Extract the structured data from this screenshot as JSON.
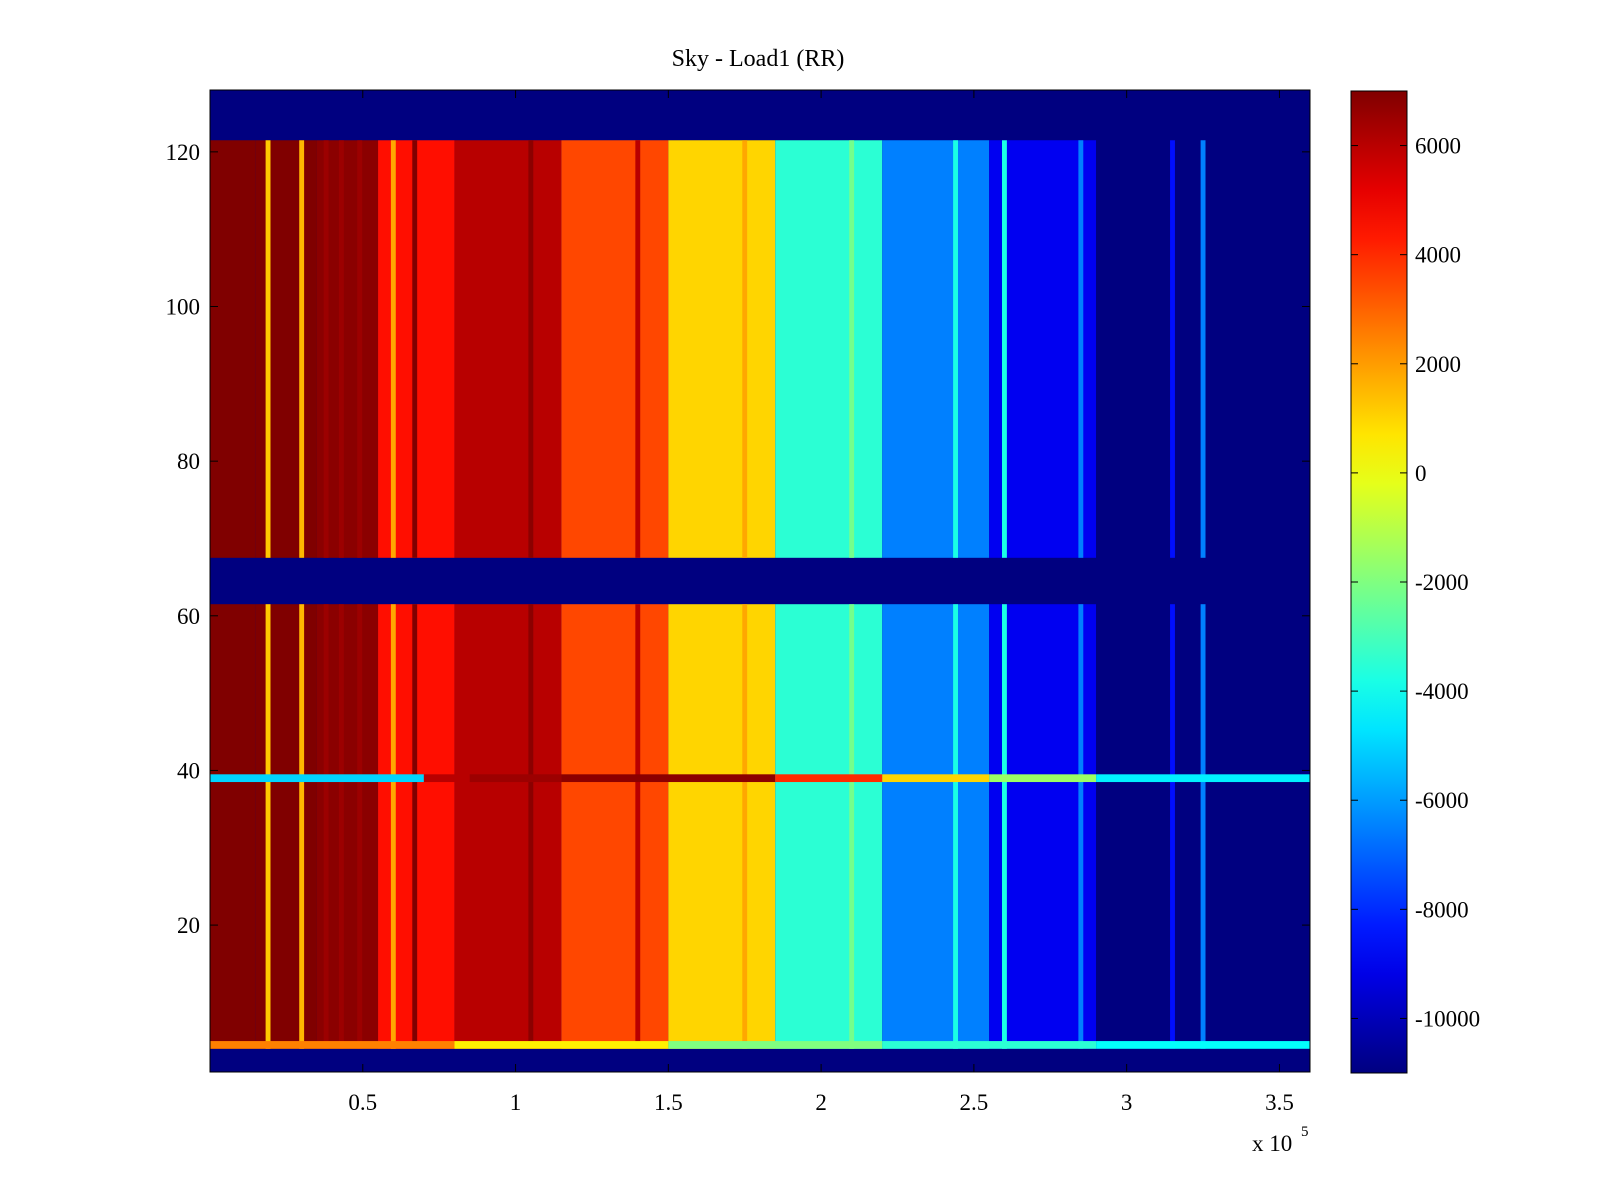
{
  "chart_data": {
    "type": "heatmap",
    "title": "Sky - Load1 (RR)",
    "xlabel": "",
    "ylabel": "",
    "x_multiplier_label": "x 10",
    "x_multiplier_exponent": "5",
    "xlim": [
      0.0,
      3.6
    ],
    "ylim": [
      1,
      128
    ],
    "xticks": [
      0.5,
      1,
      1.5,
      2,
      2.5,
      3,
      3.5
    ],
    "xtick_labels": [
      "0.5",
      "1",
      "1.5",
      "2",
      "2.5",
      "3",
      "3.5"
    ],
    "yticks": [
      20,
      40,
      60,
      80,
      100,
      120
    ],
    "ytick_labels": [
      "20",
      "40",
      "60",
      "80",
      "100",
      "120"
    ],
    "colorbar": {
      "range": [
        -11000,
        7000
      ],
      "ticks": [
        6000,
        4000,
        2000,
        0,
        -2000,
        -4000,
        -6000,
        -8000,
        -10000
      ],
      "tick_labels": [
        "6000",
        "4000",
        "2000",
        "0",
        "-2000",
        "-4000",
        "-6000",
        "-8000",
        "-10000"
      ],
      "colormap": "jet"
    },
    "x_segment_edges": [
      0.0,
      0.15,
      0.35,
      0.55,
      0.8,
      1.15,
      1.5,
      1.85,
      2.2,
      2.55,
      2.9,
      3.25,
      3.6
    ],
    "column_values": [
      7000,
      7000,
      6800,
      4500,
      6000,
      3500,
      1000,
      -3500,
      -6500,
      -9000,
      -11000,
      -11000
    ],
    "masked_row_ranges": [
      [
        1,
        4
      ],
      [
        61.5,
        67.5
      ],
      [
        121.5,
        128
      ]
    ],
    "special_rows": [
      {
        "y_range": [
          38.5,
          39.5
        ],
        "x_segment_edges": [
          0.0,
          0.7,
          0.85,
          1.15,
          1.85,
          2.2,
          2.55,
          2.9,
          3.6
        ],
        "values": [
          -5000,
          6000,
          6500,
          6800,
          4000,
          1000,
          -1500,
          -4500
        ]
      },
      {
        "y_range": [
          4,
          5
        ],
        "x_segment_edges": [
          0.0,
          0.8,
          1.5,
          2.2,
          2.9,
          3.6
        ],
        "values": [
          2500,
          500,
          -2000,
          -3500,
          -4200
        ]
      }
    ],
    "stripes": [
      {
        "x": 0.19,
        "value": 1200
      },
      {
        "x": 0.3,
        "value": 1500
      },
      {
        "x": 0.38,
        "value": 6500
      },
      {
        "x": 0.43,
        "value": 6500
      },
      {
        "x": 0.49,
        "value": 6500
      },
      {
        "x": 0.6,
        "value": 1800
      },
      {
        "x": 0.67,
        "value": 7000
      },
      {
        "x": 1.05,
        "value": 6800
      },
      {
        "x": 1.4,
        "value": 6000
      },
      {
        "x": 1.75,
        "value": 1800
      },
      {
        "x": 2.1,
        "value": -2200
      },
      {
        "x": 2.44,
        "value": -3800
      },
      {
        "x": 2.6,
        "value": -3800
      },
      {
        "x": 2.85,
        "value": -6500
      },
      {
        "x": 3.15,
        "value": -8500
      },
      {
        "x": 3.25,
        "value": -6500
      }
    ]
  }
}
